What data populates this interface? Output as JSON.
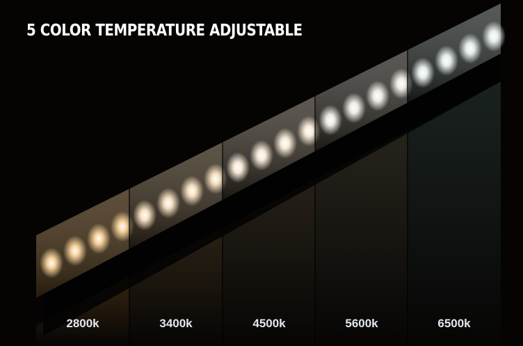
{
  "title": "5 COLOR TEMPERATURE ADJUSTABLE",
  "sections": [
    {
      "label": "2800k",
      "led_color": "#ffd9a0",
      "wall_color": "#3a2914"
    },
    {
      "label": "3400k",
      "led_color": "#ffe8c8",
      "wall_color": "#2e2416"
    },
    {
      "label": "4500k",
      "led_color": "#fff2e0",
      "wall_color": "#29231a"
    },
    {
      "label": "5600k",
      "led_color": "#f6f4ee",
      "wall_color": "#2a271e"
    },
    {
      "label": "6500k",
      "led_color": "#eef6f4",
      "wall_color": "#1c2522"
    }
  ]
}
